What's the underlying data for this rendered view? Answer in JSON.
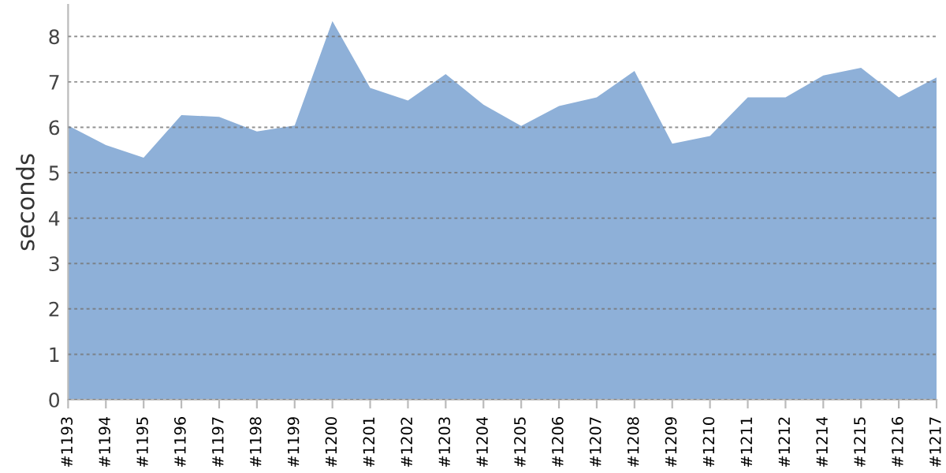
{
  "chart_data": {
    "type": "area",
    "ylabel": "seconds",
    "categories": [
      "#1193",
      "#1194",
      "#1195",
      "#1196",
      "#1197",
      "#1198",
      "#1199",
      "#1200",
      "#1201",
      "#1202",
      "#1203",
      "#1204",
      "#1205",
      "#1206",
      "#1207",
      "#1208",
      "#1209",
      "#1210",
      "#1211",
      "#1212",
      "#1214",
      "#1215",
      "#1216",
      "#1217"
    ],
    "values": [
      6.04,
      5.61,
      5.33,
      6.27,
      6.23,
      5.91,
      6.04,
      8.34,
      6.87,
      6.59,
      7.17,
      6.5,
      6.03,
      6.47,
      6.66,
      7.24,
      5.64,
      5.81,
      6.66,
      6.66,
      7.14,
      7.31,
      6.66,
      7.1
    ],
    "color": "#8eb0d8",
    "ylim": [
      0,
      8.7
    ],
    "yticks": [
      0,
      1,
      2,
      3,
      4,
      5,
      6,
      7,
      8
    ],
    "grid": "y",
    "legend": false
  }
}
